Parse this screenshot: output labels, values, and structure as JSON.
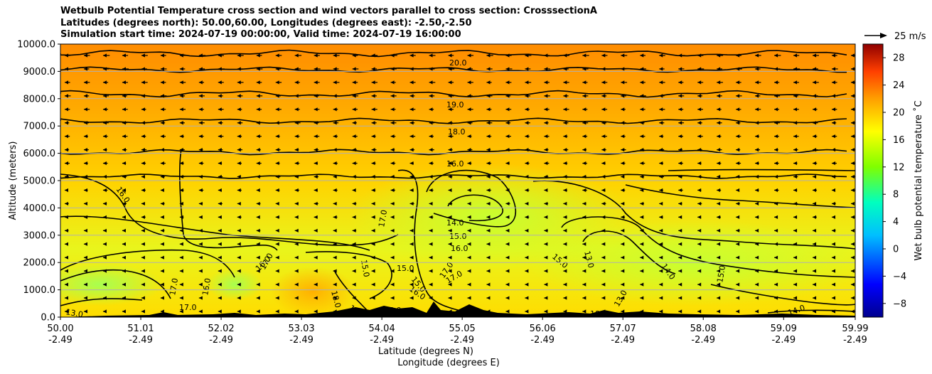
{
  "chart_data": {
    "type": "heatmap",
    "title_lines": [
      "Wetbulb Potential Temperature cross section and wind vectors parallel to cross section: CrosssectionA",
      "Latitudes (degrees north): 50.00,60.00, Longitudes (degrees east): -2.50,-2.50",
      "Simulation start time: 2024-07-19 00:00:00, Valid time: 2024-07-19 16:00:00"
    ],
    "xlabel_lat": "Latitude (degrees N)",
    "xlabel_lon": "Longitude (degrees E)",
    "ylabel": "Altitude (meters)",
    "x_ticks": [
      {
        "lat": "50.00",
        "lon": "-2.49"
      },
      {
        "lat": "51.01",
        "lon": "-2.49"
      },
      {
        "lat": "52.02",
        "lon": "-2.49"
      },
      {
        "lat": "53.03",
        "lon": "-2.49"
      },
      {
        "lat": "54.04",
        "lon": "-2.49"
      },
      {
        "lat": "55.05",
        "lon": "-2.49"
      },
      {
        "lat": "56.06",
        "lon": "-2.49"
      },
      {
        "lat": "57.07",
        "lon": "-2.49"
      },
      {
        "lat": "58.08",
        "lon": "-2.49"
      },
      {
        "lat": "59.09",
        "lon": "-2.49"
      },
      {
        "lat": "59.99",
        "lon": "-2.49"
      }
    ],
    "y_ticks": [
      "0.0",
      "1000.0",
      "2000.0",
      "3000.0",
      "4000.0",
      "5000.0",
      "6000.0",
      "7000.0",
      "8000.0",
      "9000.0",
      "10000.0"
    ],
    "ylim": [
      0,
      10000
    ],
    "xlim": [
      50.0,
      59.99
    ],
    "grid": "horizontal",
    "colorbar": {
      "label": "Wet bulb potential temperature ˚C",
      "ticks": [
        "−8",
        "−4",
        "0",
        "4",
        "8",
        "12",
        "16",
        "20",
        "24",
        "28"
      ],
      "range": [
        -10,
        30
      ]
    },
    "quiver_key": "25 m/s",
    "contour_labels": [
      "20.0",
      "19.0",
      "18.0",
      "16.0",
      "16.0",
      "14.0",
      "15.0",
      "16.0",
      "17.0",
      "15.0",
      "13.0",
      "15.0",
      "15.0",
      "16.0",
      "17.0",
      "17.0",
      "14.0",
      "15.0",
      "16.0",
      "17.0",
      "16.0",
      "13.0",
      "18.0",
      "17.0",
      "15.0",
      "14.0",
      "13.0",
      "18.0",
      "17.0",
      "16.0",
      "18.0"
    ],
    "colors": {
      "warm": "#ff8c00",
      "mid": "#ffd700",
      "cool": "#c0ff40",
      "terrain": "#000000"
    }
  }
}
